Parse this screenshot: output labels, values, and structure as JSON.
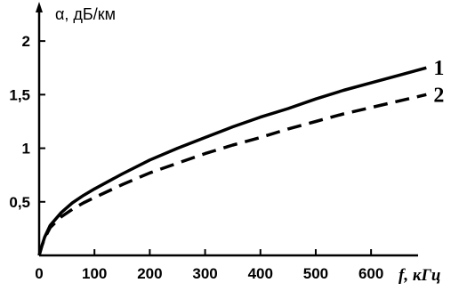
{
  "chart_data": {
    "type": "line",
    "ylabel": "α, дБ/км",
    "xlabel": "f, кГц",
    "xlim": [
      0,
      730
    ],
    "ylim": [
      0,
      2.3
    ],
    "x_ticks": [
      {
        "value": 0,
        "label": "0"
      },
      {
        "value": 100,
        "label": "100"
      },
      {
        "value": 200,
        "label": "200"
      },
      {
        "value": 300,
        "label": "300"
      },
      {
        "value": 400,
        "label": "400"
      },
      {
        "value": 500,
        "label": "500"
      },
      {
        "value": 600,
        "label": "600"
      }
    ],
    "y_ticks": [
      {
        "value": 0.5,
        "label": "0,5"
      },
      {
        "value": 1,
        "label": "1"
      },
      {
        "value": 1.5,
        "label": "1,5"
      },
      {
        "value": 2,
        "label": "2"
      }
    ],
    "grid": false,
    "series": [
      {
        "name": "1",
        "style": "solid",
        "x": [
          0,
          5,
          10,
          20,
          40,
          60,
          80,
          100,
          150,
          200,
          250,
          300,
          350,
          400,
          450,
          500,
          550,
          600,
          650,
          700
        ],
        "y": [
          0,
          0.09,
          0.17,
          0.28,
          0.4,
          0.49,
          0.56,
          0.62,
          0.76,
          0.89,
          1.0,
          1.1,
          1.2,
          1.29,
          1.37,
          1.46,
          1.54,
          1.61,
          1.68,
          1.75
        ]
      },
      {
        "name": "2",
        "style": "dashed",
        "x": [
          0,
          5,
          10,
          20,
          40,
          60,
          80,
          100,
          150,
          200,
          250,
          300,
          350,
          400,
          450,
          500,
          550,
          600,
          650,
          700
        ],
        "y": [
          0,
          0.09,
          0.16,
          0.26,
          0.36,
          0.43,
          0.49,
          0.54,
          0.66,
          0.77,
          0.86,
          0.95,
          1.03,
          1.1,
          1.18,
          1.25,
          1.32,
          1.38,
          1.44,
          1.5
        ]
      }
    ]
  }
}
